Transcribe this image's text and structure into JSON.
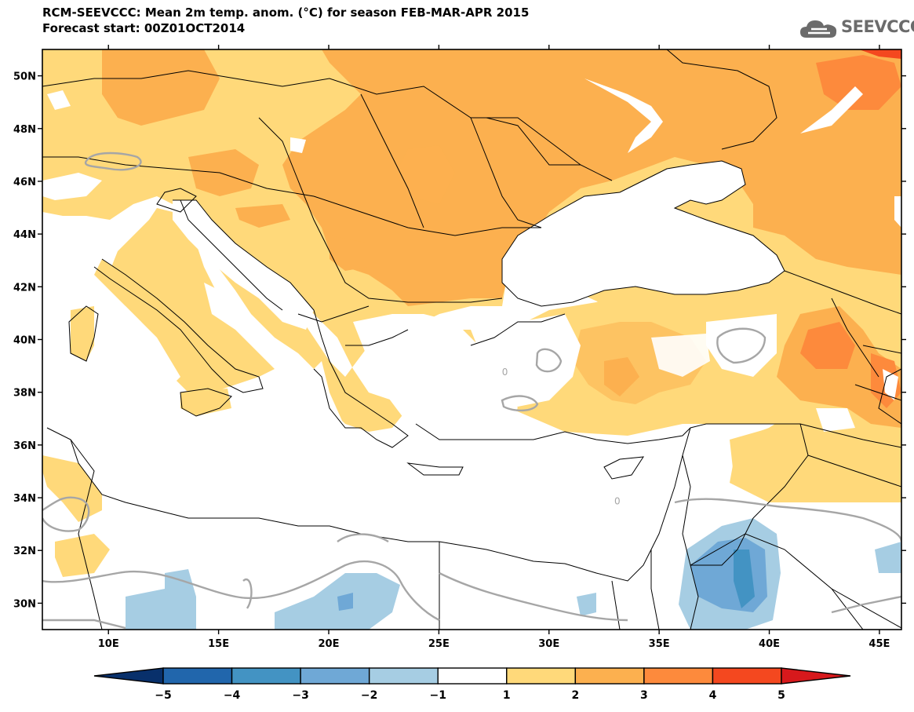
{
  "header": {
    "title_line1": "RCM-SEEVCCC: Mean 2m temp. anom. (°C) for season FEB-MAR-APR 2015",
    "title_line2": "Forecast start: 00Z01OCT2014"
  },
  "logo": {
    "text": "SEEVCCC",
    "icon": "cloud-icon",
    "color": "#6b6b6b"
  },
  "map": {
    "lon_range": [
      7,
      46
    ],
    "lat_range": [
      29,
      51
    ],
    "lon_ticks": [
      {
        "v": 10,
        "label": "10E"
      },
      {
        "v": 15,
        "label": "15E"
      },
      {
        "v": 20,
        "label": "20E"
      },
      {
        "v": 25,
        "label": "25E"
      },
      {
        "v": 30,
        "label": "30E"
      },
      {
        "v": 35,
        "label": "35E"
      },
      {
        "v": 40,
        "label": "40E"
      },
      {
        "v": 45,
        "label": "45E"
      }
    ],
    "lat_ticks": [
      {
        "v": 30,
        "label": "30N"
      },
      {
        "v": 32,
        "label": "32N"
      },
      {
        "v": 34,
        "label": "34N"
      },
      {
        "v": 36,
        "label": "36N"
      },
      {
        "v": 38,
        "label": "38N"
      },
      {
        "v": 40,
        "label": "40N"
      },
      {
        "v": 42,
        "label": "42N"
      },
      {
        "v": 44,
        "label": "44N"
      },
      {
        "v": 46,
        "label": "46N"
      },
      {
        "v": 48,
        "label": "48N"
      },
      {
        "v": 50,
        "label": "50N"
      }
    ],
    "zero_contour_labels": [
      {
        "lon": 28.0,
        "lat": 38.8,
        "label": "0"
      },
      {
        "lon": 33.1,
        "lat": 33.9,
        "label": "0"
      }
    ]
  },
  "colorbar": {
    "levels": [
      "-5",
      "-4",
      "-3",
      "-2",
      "-1",
      "1",
      "2",
      "3",
      "4",
      "5"
    ],
    "colors": [
      "#08306b",
      "#2166ac",
      "#4393c3",
      "#6fa8d6",
      "#a6cde3",
      "#ffffff",
      "#ffd97a",
      "#fcb04f",
      "#fd8a3c",
      "#f4481f",
      "#d7191c"
    ]
  }
}
